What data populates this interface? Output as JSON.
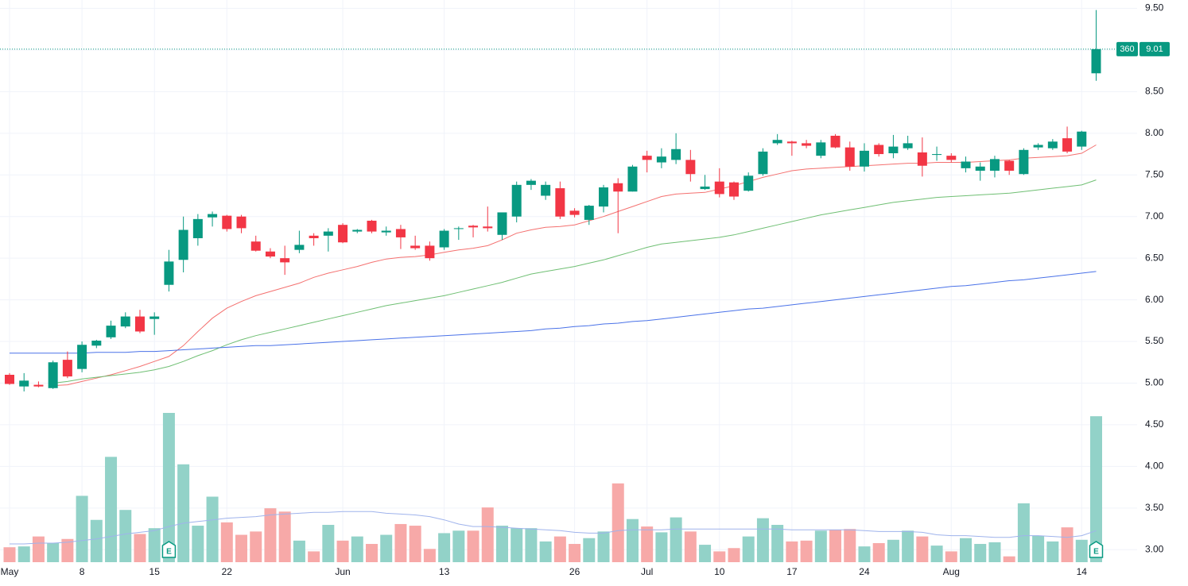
{
  "chart_data": {
    "type": "candlestick",
    "categories": [
      "May",
      null,
      null,
      null,
      null,
      "8",
      null,
      null,
      null,
      null,
      "15",
      null,
      null,
      null,
      null,
      "22",
      null,
      null,
      null,
      null,
      null,
      null,
      null,
      "Jun",
      null,
      null,
      null,
      null,
      null,
      null,
      "13",
      null,
      null,
      null,
      null,
      null,
      null,
      null,
      null,
      "26",
      null,
      null,
      null,
      null,
      "Jul",
      null,
      null,
      null,
      null,
      "10",
      null,
      null,
      null,
      null,
      "17",
      null,
      null,
      null,
      null,
      "24",
      null,
      null,
      null,
      null,
      null,
      "Aug",
      null,
      null,
      null,
      null,
      null,
      null,
      null,
      null,
      "14",
      null
    ],
    "open": [
      5.1,
      4.96,
      4.98,
      4.94,
      5.28,
      5.17,
      5.45,
      5.55,
      5.68,
      5.8,
      5.77,
      6.18,
      6.48,
      6.74,
      6.99,
      7.01,
      7.0,
      6.7,
      6.58,
      6.5,
      6.6,
      6.77,
      6.77,
      6.9,
      6.82,
      6.95,
      6.81,
      6.85,
      6.65,
      6.65,
      6.63,
      6.85,
      6.89,
      6.88,
      6.78,
      7.0,
      7.38,
      7.25,
      7.34,
      7.07,
      6.96,
      7.12,
      7.4,
      7.3,
      7.73,
      7.65,
      7.68,
      7.68,
      7.33,
      7.42,
      7.41,
      7.31,
      7.51,
      7.88,
      7.9,
      7.88,
      7.73,
      7.97,
      7.83,
      7.6,
      7.86,
      7.76,
      7.82,
      7.77,
      7.74,
      7.73,
      7.58,
      7.55,
      7.55,
      7.67,
      7.51,
      7.83,
      7.82,
      7.94,
      7.84,
      8.72
    ],
    "high": [
      5.12,
      5.12,
      5.02,
      5.27,
      5.38,
      5.5,
      5.52,
      5.75,
      5.85,
      5.88,
      5.85,
      6.6,
      7.0,
      7.03,
      7.06,
      7.02,
      7.02,
      6.77,
      6.62,
      6.65,
      6.83,
      6.8,
      6.86,
      6.92,
      6.85,
      6.96,
      6.88,
      6.9,
      6.77,
      6.7,
      6.85,
      6.88,
      6.9,
      7.12,
      7.02,
      7.42,
      7.45,
      7.42,
      7.42,
      7.1,
      7.14,
      7.38,
      7.46,
      7.62,
      7.79,
      7.82,
      8.0,
      7.8,
      7.5,
      7.58,
      7.42,
      7.53,
      7.82,
      7.99,
      7.91,
      7.92,
      7.92,
      7.99,
      7.9,
      7.88,
      7.88,
      7.98,
      7.97,
      7.95,
      7.84,
      7.76,
      7.72,
      7.65,
      7.73,
      7.68,
      7.82,
      7.88,
      7.93,
      8.08,
      8.03,
      9.48
    ],
    "low": [
      4.98,
      4.9,
      4.95,
      4.93,
      5.06,
      5.13,
      5.42,
      5.53,
      5.66,
      5.6,
      5.58,
      6.1,
      6.33,
      6.65,
      6.88,
      6.82,
      6.8,
      6.58,
      6.5,
      6.3,
      6.56,
      6.65,
      6.58,
      6.68,
      6.8,
      6.8,
      6.77,
      6.61,
      6.6,
      6.47,
      6.6,
      6.72,
      6.75,
      6.82,
      6.72,
      6.93,
      7.32,
      7.2,
      6.97,
      6.99,
      6.9,
      7.05,
      6.8,
      7.3,
      7.53,
      7.58,
      7.63,
      7.42,
      7.32,
      7.23,
      7.2,
      7.3,
      7.49,
      7.86,
      7.73,
      7.82,
      7.7,
      7.82,
      7.55,
      7.54,
      7.72,
      7.7,
      7.8,
      7.48,
      7.67,
      7.65,
      7.53,
      7.43,
      7.47,
      7.5,
      7.5,
      7.8,
      7.8,
      7.76,
      7.8,
      8.63
    ],
    "close": [
      4.99,
      5.03,
      4.96,
      5.25,
      5.08,
      5.46,
      5.51,
      5.69,
      5.8,
      5.62,
      5.8,
      6.46,
      6.84,
      6.97,
      7.03,
      6.85,
      6.86,
      6.59,
      6.52,
      6.45,
      6.66,
      6.74,
      6.82,
      6.69,
      6.84,
      6.82,
      6.83,
      6.75,
      6.62,
      6.5,
      6.83,
      6.86,
      6.87,
      6.86,
      7.05,
      7.38,
      7.43,
      7.38,
      7.0,
      7.02,
      7.13,
      7.35,
      7.3,
      7.6,
      7.68,
      7.72,
      7.81,
      7.51,
      7.36,
      7.27,
      7.24,
      7.49,
      7.78,
      7.92,
      7.88,
      7.85,
      7.89,
      7.83,
      7.6,
      7.79,
      7.75,
      7.84,
      7.88,
      7.61,
      7.75,
      7.68,
      7.66,
      7.6,
      7.69,
      7.55,
      7.8,
      7.86,
      7.9,
      7.78,
      8.02,
      9.01
    ],
    "up_color": "#089981",
    "down_color": "#f23645",
    "ylim": [
      2.85,
      9.6
    ],
    "yticks": [
      {
        "value": 3,
        "label": "3.00"
      },
      {
        "value": 3.5,
        "label": "3.50"
      },
      {
        "value": 4,
        "label": "4.00"
      },
      {
        "value": 4.5,
        "label": "4.50"
      },
      {
        "value": 5,
        "label": "5.00"
      },
      {
        "value": 5.5,
        "label": "5.50"
      },
      {
        "value": 6,
        "label": "6.00"
      },
      {
        "value": 6.5,
        "label": "6.50"
      },
      {
        "value": 7,
        "label": "7.00"
      },
      {
        "value": 7.5,
        "label": "7.50"
      },
      {
        "value": 8,
        "label": "8.00"
      },
      {
        "value": 8.5,
        "label": "8.50"
      },
      {
        "value": 9,
        "label": "9.00"
      },
      {
        "value": 9.5,
        "label": "9.50"
      }
    ],
    "grid": true,
    "moving_averages": [
      {
        "color": "#f4706f",
        "values": [
          null,
          null,
          null,
          4.97,
          4.98,
          5.02,
          5.06,
          5.1,
          5.15,
          5.2,
          5.26,
          5.32,
          5.45,
          5.62,
          5.78,
          5.9,
          5.98,
          6.05,
          6.1,
          6.15,
          6.2,
          6.27,
          6.32,
          6.36,
          6.4,
          6.45,
          6.49,
          6.51,
          6.52,
          6.54,
          6.57,
          6.6,
          6.62,
          6.65,
          6.72,
          6.8,
          6.84,
          6.87,
          6.88,
          6.9,
          6.95,
          7.0,
          7.06,
          7.12,
          7.18,
          7.24,
          7.27,
          7.28,
          7.29,
          7.33,
          7.37,
          7.42,
          7.47,
          7.51,
          7.55,
          7.57,
          7.58,
          7.59,
          7.6,
          7.61,
          7.62,
          7.63,
          7.64,
          7.64,
          7.65,
          7.65,
          7.65,
          7.66,
          7.67,
          7.68,
          7.7,
          7.71,
          7.72,
          7.73,
          7.76,
          7.86
        ]
      },
      {
        "color": "#6fbf73",
        "values": [
          null,
          null,
          null,
          5.0,
          5.02,
          5.05,
          5.07,
          5.09,
          5.11,
          5.13,
          5.16,
          5.2,
          5.26,
          5.33,
          5.39,
          5.46,
          5.52,
          5.57,
          5.61,
          5.65,
          5.69,
          5.73,
          5.77,
          5.81,
          5.85,
          5.89,
          5.93,
          5.96,
          5.99,
          6.02,
          6.05,
          6.09,
          6.13,
          6.17,
          6.21,
          6.26,
          6.31,
          6.34,
          6.37,
          6.4,
          6.44,
          6.48,
          6.53,
          6.58,
          6.63,
          6.67,
          6.69,
          6.71,
          6.73,
          6.75,
          6.78,
          6.82,
          6.86,
          6.9,
          6.94,
          6.98,
          7.02,
          7.05,
          7.08,
          7.11,
          7.14,
          7.17,
          7.19,
          7.21,
          7.23,
          7.24,
          7.25,
          7.26,
          7.27,
          7.28,
          7.3,
          7.32,
          7.34,
          7.36,
          7.38,
          7.44
        ]
      },
      {
        "color": "#4a72e8",
        "values": [
          5.36,
          5.36,
          5.36,
          5.36,
          5.36,
          5.36,
          5.37,
          5.37,
          5.37,
          5.38,
          5.38,
          5.39,
          5.4,
          5.41,
          5.42,
          5.43,
          5.44,
          5.45,
          5.45,
          5.46,
          5.47,
          5.48,
          5.49,
          5.5,
          5.51,
          5.52,
          5.53,
          5.54,
          5.55,
          5.56,
          5.57,
          5.58,
          5.59,
          5.6,
          5.61,
          5.62,
          5.63,
          5.65,
          5.66,
          5.68,
          5.69,
          5.71,
          5.72,
          5.74,
          5.75,
          5.77,
          5.79,
          5.81,
          5.83,
          5.85,
          5.87,
          5.89,
          5.9,
          5.92,
          5.94,
          5.96,
          5.98,
          6.0,
          6.02,
          6.04,
          6.06,
          6.08,
          6.1,
          6.12,
          6.14,
          6.16,
          6.17,
          6.19,
          6.21,
          6.23,
          6.24,
          6.26,
          6.28,
          6.3,
          6.32,
          6.34
        ]
      }
    ],
    "volume": {
      "up_color": "#92d2c8",
      "down_color": "#f7a9a8",
      "values": [
        18,
        19,
        31,
        23,
        28,
        80,
        51,
        127,
        63,
        34,
        41,
        180,
        118,
        44,
        79,
        48,
        33,
        37,
        65,
        61,
        26,
        13,
        45,
        26,
        31,
        22,
        33,
        46,
        44,
        16,
        35,
        38,
        38,
        66,
        44,
        41,
        41,
        25,
        31,
        22,
        29,
        37,
        95,
        52,
        43,
        36,
        54,
        37,
        21,
        13,
        17,
        31,
        53,
        45,
        25,
        26,
        38,
        39,
        40,
        19,
        23,
        27,
        38,
        31,
        20,
        13,
        29,
        22,
        24,
        7,
        71,
        32,
        25,
        42,
        27,
        176
      ],
      "ma": {
        "color": "#9fb3ec",
        "values": [
          22,
          22,
          23,
          23,
          24,
          26,
          28,
          31,
          34,
          36,
          38,
          43,
          47,
          49,
          51,
          53,
          54,
          55,
          57,
          58,
          59,
          60,
          60,
          61,
          61,
          61,
          59,
          58,
          57,
          55,
          51,
          46,
          43,
          43,
          42,
          41,
          40,
          39,
          38,
          36,
          35,
          35,
          38,
          39,
          39,
          39,
          40,
          40,
          40,
          40,
          40,
          40,
          40,
          40,
          39,
          39,
          39,
          39,
          39,
          38,
          37,
          37,
          37,
          36,
          33,
          32,
          32,
          31,
          30,
          30,
          32,
          32,
          31,
          30,
          32,
          38
        ]
      }
    },
    "events": [
      {
        "at": 11,
        "label": "E"
      },
      {
        "at": 75,
        "label": "E"
      }
    ],
    "last_price": 9.01,
    "countdown": 360
  }
}
